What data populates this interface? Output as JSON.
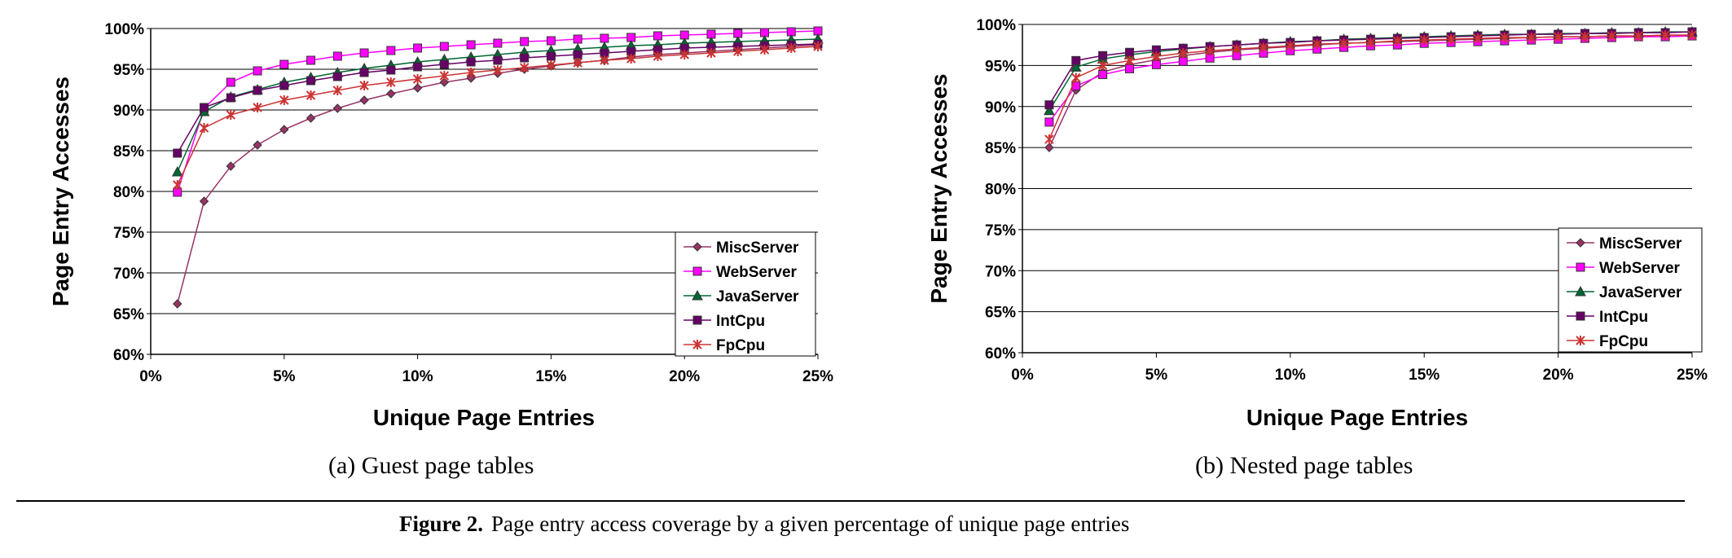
{
  "chart_data": [
    {
      "type": "line",
      "title": "",
      "xlabel": "Unique Page Entries",
      "ylabel": "Page Entry Accesses",
      "x_ticks": [
        "0%",
        "5%",
        "10%",
        "15%",
        "20%",
        "25%"
      ],
      "y_ticks": [
        "60%",
        "65%",
        "70%",
        "75%",
        "80%",
        "85%",
        "90%",
        "95%",
        "100%"
      ],
      "xlim": [
        0,
        25
      ],
      "ylim": [
        60,
        100
      ],
      "legend_position": "bottom-right",
      "x": [
        1,
        2,
        3,
        4,
        5,
        6,
        7,
        8,
        9,
        10,
        11,
        12,
        13,
        14,
        15,
        16,
        17,
        18,
        19,
        20,
        21,
        22,
        23,
        24,
        25
      ],
      "series": [
        {
          "name": "MiscServer",
          "color": "#993366",
          "marker": "diamond",
          "values": [
            66.2,
            78.8,
            83.1,
            85.7,
            87.6,
            89.0,
            90.2,
            91.2,
            92.0,
            92.7,
            93.4,
            93.9,
            94.5,
            95.0,
            95.4,
            95.8,
            96.1,
            96.5,
            96.8,
            97.0,
            97.2,
            97.4,
            97.6,
            97.8,
            98.0
          ]
        },
        {
          "name": "WebServer",
          "color": "#ff00ff",
          "marker": "square",
          "values": [
            79.9,
            90.2,
            93.4,
            94.8,
            95.6,
            96.1,
            96.6,
            97.0,
            97.3,
            97.6,
            97.8,
            98.0,
            98.2,
            98.4,
            98.5,
            98.7,
            98.8,
            98.9,
            99.1,
            99.2,
            99.3,
            99.4,
            99.5,
            99.6,
            99.7
          ]
        },
        {
          "name": "JavaServer",
          "color": "#006633",
          "marker": "triangle",
          "values": [
            82.4,
            89.8,
            91.6,
            92.5,
            93.4,
            94.0,
            94.6,
            95.1,
            95.5,
            95.9,
            96.2,
            96.5,
            96.8,
            97.1,
            97.3,
            97.5,
            97.7,
            97.9,
            98.0,
            98.2,
            98.3,
            98.4,
            98.5,
            98.6,
            98.7
          ]
        },
        {
          "name": "IntCpu",
          "color": "#660066",
          "marker": "square",
          "values": [
            84.7,
            90.3,
            91.5,
            92.4,
            93.0,
            93.6,
            94.1,
            94.6,
            94.9,
            95.3,
            95.6,
            95.9,
            96.1,
            96.4,
            96.6,
            96.8,
            97.0,
            97.2,
            97.4,
            97.6,
            97.7,
            97.8,
            97.9,
            98.0,
            98.1
          ]
        },
        {
          "name": "FpCpu",
          "color": "#cc3333",
          "marker": "star",
          "values": [
            80.8,
            87.8,
            89.4,
            90.3,
            91.2,
            91.8,
            92.4,
            93.0,
            93.4,
            93.8,
            94.2,
            94.6,
            94.9,
            95.2,
            95.5,
            95.8,
            96.1,
            96.3,
            96.6,
            96.8,
            97.0,
            97.2,
            97.4,
            97.6,
            97.8
          ]
        }
      ]
    },
    {
      "type": "line",
      "title": "",
      "xlabel": "Unique Page Entries",
      "ylabel": "Page Entry Accesses",
      "x_ticks": [
        "0%",
        "5%",
        "10%",
        "15%",
        "20%",
        "25%"
      ],
      "y_ticks": [
        "60%",
        "65%",
        "70%",
        "75%",
        "80%",
        "85%",
        "90%",
        "95%",
        "100%"
      ],
      "xlim": [
        0,
        25
      ],
      "ylim": [
        60,
        100
      ],
      "legend_position": "bottom-right",
      "x": [
        1,
        2,
        3,
        4,
        5,
        6,
        7,
        8,
        9,
        10,
        11,
        12,
        13,
        14,
        15,
        16,
        17,
        18,
        19,
        20,
        21,
        22,
        23,
        24,
        25
      ],
      "series": [
        {
          "name": "MiscServer",
          "color": "#993366",
          "marker": "diamond",
          "values": [
            85.0,
            92.0,
            94.2,
            95.1,
            95.7,
            96.2,
            96.6,
            96.9,
            97.1,
            97.3,
            97.5,
            97.7,
            97.8,
            97.9,
            98.0,
            98.1,
            98.2,
            98.3,
            98.4,
            98.5,
            98.5,
            98.6,
            98.6,
            98.7,
            98.7
          ]
        },
        {
          "name": "WebServer",
          "color": "#ff00ff",
          "marker": "square",
          "values": [
            88.1,
            92.5,
            93.9,
            94.6,
            95.1,
            95.5,
            95.9,
            96.2,
            96.5,
            96.8,
            97.0,
            97.2,
            97.4,
            97.5,
            97.7,
            97.8,
            97.9,
            98.0,
            98.1,
            98.2,
            98.3,
            98.4,
            98.5,
            98.5,
            98.6
          ]
        },
        {
          "name": "JavaServer",
          "color": "#006633",
          "marker": "triangle",
          "values": [
            89.5,
            94.8,
            95.8,
            96.3,
            96.7,
            97.0,
            97.3,
            97.5,
            97.7,
            97.9,
            98.0,
            98.2,
            98.3,
            98.4,
            98.5,
            98.6,
            98.7,
            98.8,
            98.8,
            98.9,
            98.9,
            99.0,
            99.0,
            99.1,
            99.1
          ]
        },
        {
          "name": "IntCpu",
          "color": "#660066",
          "marker": "square",
          "values": [
            90.2,
            95.6,
            96.2,
            96.6,
            96.9,
            97.1,
            97.3,
            97.5,
            97.7,
            97.8,
            98.0,
            98.1,
            98.2,
            98.3,
            98.4,
            98.5,
            98.6,
            98.7,
            98.8,
            98.8,
            98.9,
            98.9,
            99.0,
            99.0,
            99.1
          ]
        },
        {
          "name": "FpCpu",
          "color": "#cc3333",
          "marker": "star",
          "values": [
            86.0,
            93.5,
            95.0,
            95.6,
            96.1,
            96.5,
            96.8,
            97.0,
            97.2,
            97.4,
            97.6,
            97.7,
            97.8,
            98.0,
            98.1,
            98.2,
            98.3,
            98.4,
            98.4,
            98.5,
            98.5,
            98.6,
            98.6,
            98.7,
            98.7
          ]
        }
      ]
    }
  ],
  "subcaptions": [
    "(a) Guest page tables",
    "(b) Nested page tables"
  ],
  "figure_caption": {
    "number": "Figure 2.",
    "text": "Page entry access coverage by a given percentage of unique page entries"
  }
}
